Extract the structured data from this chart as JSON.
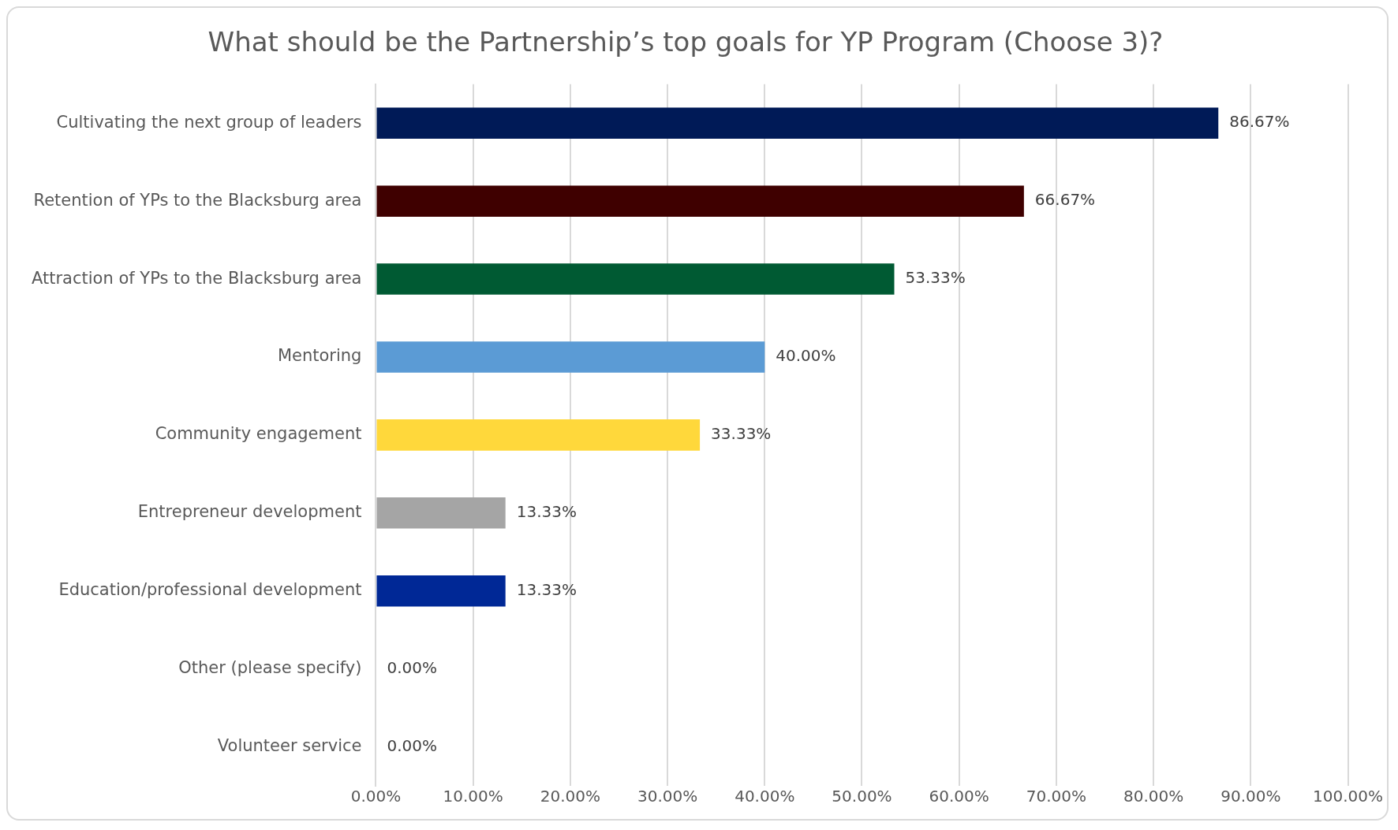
{
  "chart_data": {
    "type": "bar",
    "orientation": "horizontal",
    "title": "What should be the Partnership’s top goals for YP Program (Choose 3)?",
    "categories": [
      "Cultivating the next group of leaders",
      "Retention of YPs to the Blacksburg area",
      "Attraction of YPs to the Blacksburg area",
      "Mentoring",
      "Community engagement",
      "Entrepreneur development",
      "Education/professional development",
      "Other (please specify)",
      "Volunteer service"
    ],
    "values": [
      86.67,
      66.67,
      53.33,
      40,
      33.33,
      13.33,
      13.33,
      0,
      0
    ],
    "colors": [
      "#001a57",
      "#3f0000",
      "#005a33",
      "#5b9bd5",
      "#ffd83b",
      "#a5a5a5",
      "#002896",
      "#a5a5a5",
      "#a5a5a5"
    ],
    "value_labels": [
      "86.67%",
      "66.67%",
      "53.33%",
      "40.00%",
      "33.33%",
      "13.33%",
      "13.33%",
      "0.00%",
      "0.00%"
    ],
    "xlim": [
      0,
      100
    ],
    "xticks": [
      {
        "value": 0,
        "label": "0.00%"
      },
      {
        "value": 10,
        "label": "10.00%"
      },
      {
        "value": 20,
        "label": "20.00%"
      },
      {
        "value": 30,
        "label": "30.00%"
      },
      {
        "value": 40,
        "label": "40.00%"
      },
      {
        "value": 50,
        "label": "50.00%"
      },
      {
        "value": 60,
        "label": "60.00%"
      },
      {
        "value": 70,
        "label": "70.00%"
      },
      {
        "value": 80,
        "label": "80.00%"
      },
      {
        "value": 90,
        "label": "90.00%"
      },
      {
        "value": 100,
        "label": "100.00%"
      }
    ],
    "grid": "x",
    "legend": false
  }
}
